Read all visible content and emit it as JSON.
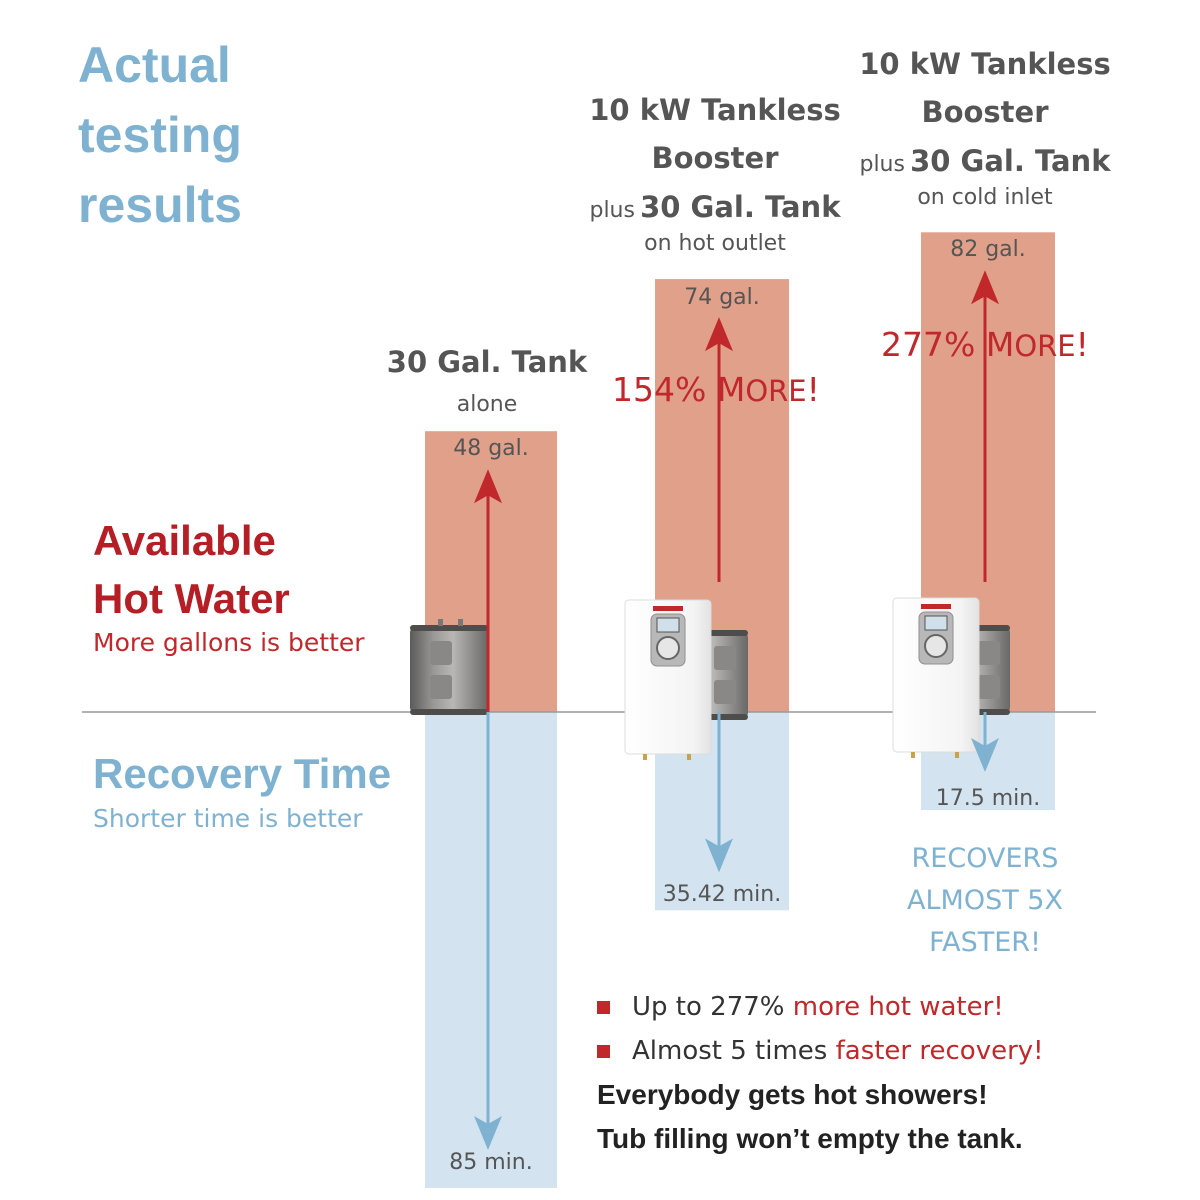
{
  "title_lines": [
    "Actual",
    "testing",
    "results"
  ],
  "labels": {
    "available_line1": "Available",
    "available_line2": "Hot Water",
    "available_sub": "More gallons is better",
    "recovery": "Recovery Time",
    "recovery_sub": "Shorter time is better"
  },
  "columns": [
    {
      "line1": "30 Gal. Tank",
      "line2": "alone",
      "gallons_label": "48 gal.",
      "time_label": "85 min."
    },
    {
      "line1": "10 kW Tankless",
      "line2": "Booster",
      "plus": "plus",
      "tank": "30 Gal. Tank",
      "note": "on hot outlet",
      "gallons_label": "74 gal.",
      "time_label": "35.42 min.",
      "pct": "154%",
      "pct_word_first": "M",
      "pct_word_rest": "ORE",
      "pct_bang": "!"
    },
    {
      "line1": "10 kW Tankless",
      "line2": "Booster",
      "plus": "plus",
      "tank": "30 Gal. Tank",
      "note": "on cold inlet",
      "gallons_label": "82 gal.",
      "time_label": "17.5 min.",
      "pct": "277%",
      "pct_word_first": "M",
      "pct_word_rest": "ORE",
      "pct_bang": "!"
    }
  ],
  "recovers_lines": [
    "RECOVERS",
    "ALMOST 5X",
    "FASTER!"
  ],
  "bullets": [
    {
      "text": "Up to 277% ",
      "highlight": "more hot water!"
    },
    {
      "text": "Almost 5 times ",
      "highlight": "faster recovery!"
    }
  ],
  "closing_lines": [
    "Everybody gets hot showers!",
    "Tub filling won’t empty the tank."
  ],
  "colors": {
    "gallons_bar": "#e0a08a",
    "time_bar": "#d3e4f0",
    "gallons_arrow": "#c0282b",
    "time_arrow": "#7fb2d1",
    "baseline": "#999999"
  },
  "chart_data": {
    "type": "bar",
    "categories": [
      "30 Gal. Tank alone",
      "10 kW Tankless Booster plus 30 Gal. Tank on hot outlet",
      "10 kW Tankless Booster plus 30 Gal. Tank on cold inlet"
    ],
    "series": [
      {
        "name": "Available Hot Water",
        "unit": "gal.",
        "values": [
          48,
          74,
          82
        ]
      },
      {
        "name": "Recovery Time",
        "unit": "min.",
        "values": [
          85,
          35.42,
          17.5
        ]
      }
    ],
    "annotations": [
      "154% MORE!",
      "277% MORE!",
      "RECOVERS ALMOST 5X FASTER!"
    ]
  }
}
